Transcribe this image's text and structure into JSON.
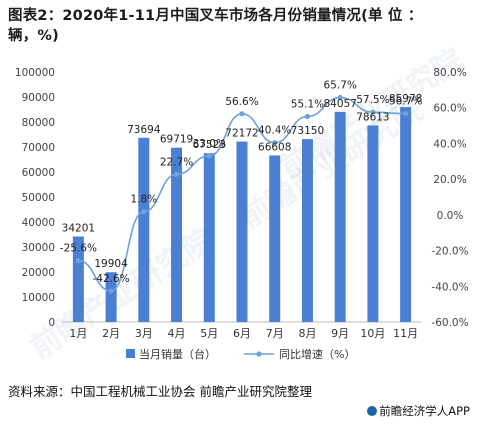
{
  "header": {
    "title_line1": "图表2：2020年1-11月中国叉车市场各月份销量情况(单 位 ：",
    "title_line2": "辆，%)"
  },
  "footer": {
    "source": "资料来源：中国工程机械工业协会 前瞻产业研究院整理",
    "brand": "前瞻经济学人APP"
  },
  "watermark_text": "前瞻产业研究院",
  "colors": {
    "bar": "#4a7fd4",
    "line": "#6ea2d8",
    "label": "#222222"
  },
  "chart_data": {
    "type": "bar",
    "categories": [
      "1月",
      "2月",
      "3月",
      "4月",
      "5月",
      "6月",
      "7月",
      "8月",
      "9月",
      "10月",
      "11月"
    ],
    "series": [
      {
        "name": "当月销量（台）",
        "type": "bar",
        "axis": "left",
        "values": [
          34201,
          19904,
          73694,
          69719,
          67523,
          72172,
          66608,
          73150,
          84057,
          78613,
          85978
        ]
      },
      {
        "name": "同比增速（%）",
        "type": "line",
        "axis": "right",
        "values": [
          -25.6,
          -42.6,
          1.8,
          22.7,
          33.0,
          56.6,
          40.4,
          55.1,
          65.7,
          57.5,
          56.7
        ]
      }
    ],
    "bar_labels": [
      "34201",
      "19904",
      "73694",
      "69719",
      "67523",
      "72172",
      "66608",
      "73150",
      "84057",
      "78613",
      "85978"
    ],
    "line_labels": [
      "-25.6%",
      "-42.6%",
      "1.8%",
      "22.7%",
      "33.0%",
      "56.6%",
      "40.4%",
      "55.1%",
      "65.7%",
      "57.5%",
      "56.7%"
    ],
    "y_left": {
      "min": 0,
      "max": 100000,
      "step": 10000,
      "ticks": [
        "0",
        "10000",
        "20000",
        "30000",
        "40000",
        "50000",
        "60000",
        "70000",
        "80000",
        "90000",
        "100000"
      ]
    },
    "y_right": {
      "min": -60,
      "max": 80,
      "step": 20,
      "ticks": [
        "-60.0%",
        "-40.0%",
        "-20.0%",
        "0.0%",
        "20.0%",
        "40.0%",
        "60.0%",
        "80.0%"
      ]
    },
    "grid": false,
    "legend_position": "bottom"
  }
}
